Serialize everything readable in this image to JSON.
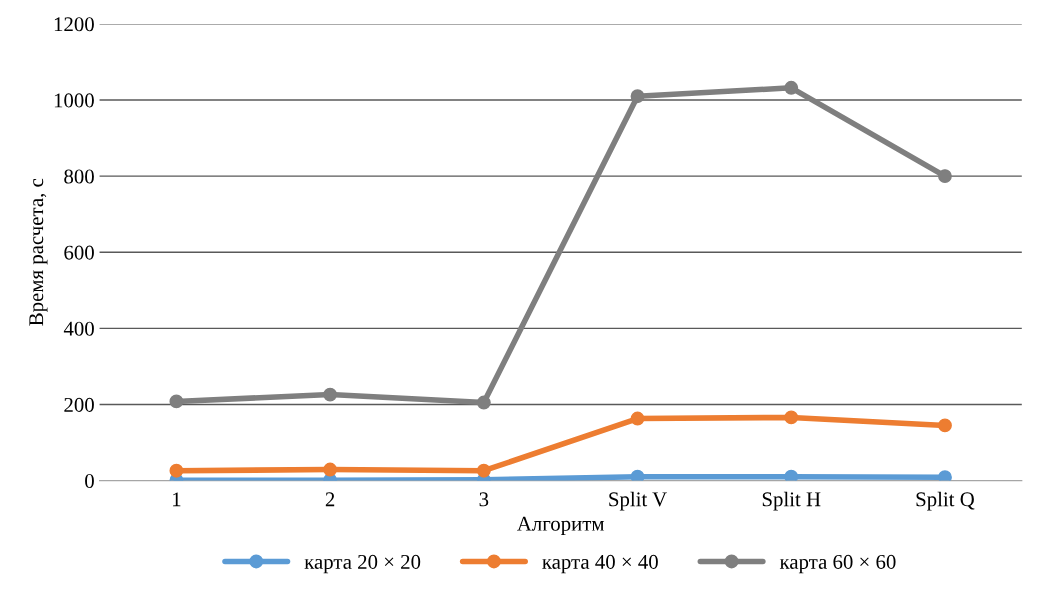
{
  "chart_data": {
    "type": "line",
    "xlabel": "Алгоритм",
    "ylabel": "Время расчета, с",
    "categories": [
      "1",
      "2",
      "3",
      "Split V",
      "Split H",
      "Split Q"
    ],
    "series": [
      {
        "name": "карта 20 × 20",
        "color": "#5b9bd5",
        "values": [
          1,
          1,
          2,
          10,
          10,
          9
        ]
      },
      {
        "name": "карта 40 × 40",
        "color": "#ed7d31",
        "values": [
          26,
          29,
          26,
          163,
          166,
          145
        ]
      },
      {
        "name": "карта 60 × 60",
        "color": "#7f7f7f",
        "values": [
          208,
          226,
          205,
          1010,
          1032,
          800
        ]
      }
    ],
    "ylim": [
      0,
      1200
    ],
    "yticks": [
      0,
      200,
      400,
      600,
      800,
      1000,
      1200
    ],
    "grid": "y",
    "legend": "bottom",
    "marker": "circle",
    "line_style": "solid"
  }
}
